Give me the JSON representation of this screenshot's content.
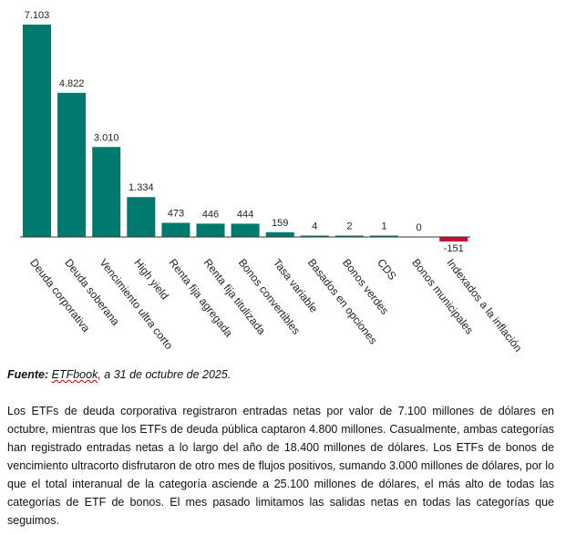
{
  "chart_data": {
    "type": "bar",
    "categories": [
      "Deuda corporativa",
      "Deuda soberana",
      "Vencimiento ultra corto",
      "High yield",
      "Renta fija agregada",
      "Renta fija titulizada",
      "Bonos convertibles",
      "Tasa variable",
      "Basados en opciones",
      "Bonos verdes",
      "CDS",
      "Bonos municipales",
      "Indexados a la inflación"
    ],
    "values": [
      7103,
      4822,
      3010,
      1334,
      473,
      446,
      444,
      159,
      4,
      2,
      1,
      0,
      -151
    ],
    "value_labels": [
      "7.103",
      "4.822",
      "3.010",
      "1.334",
      "473",
      "446",
      "444",
      "159",
      "4",
      "2",
      "1",
      "0",
      "-151"
    ],
    "title": "",
    "xlabel": "",
    "ylabel": "",
    "ylim": [
      -300,
      7200
    ],
    "grid": false,
    "legend": "none",
    "colors": {
      "positive": "#007a6e",
      "negative": "#c8102e",
      "axis": "#333333"
    }
  },
  "source": {
    "label": "Fuente:",
    "name": "ETFbook",
    "rest": ", a 31 de octubre de 2025."
  },
  "paragraph": "Los ETFs de deuda corporativa registraron entradas netas por valor de 7.100 millones de dólares en octubre, mientras que los ETFs de deuda pública captaron 4.800 millones. Casualmente, ambas categorías han registrado entradas netas a lo largo del año de 18.400 millones de dólares. Los ETFs de bonos de vencimiento ultracorto disfrutaron de otro mes de flujos positivos, sumando 3.000 millones de dólares, por lo que el total interanual de la categoría asciende a 25.100 millones de dólares, el más alto de todas las categorías de ETF de bonos. El mes pasado limitamos las salidas netas en todas las categorías que seguimos."
}
